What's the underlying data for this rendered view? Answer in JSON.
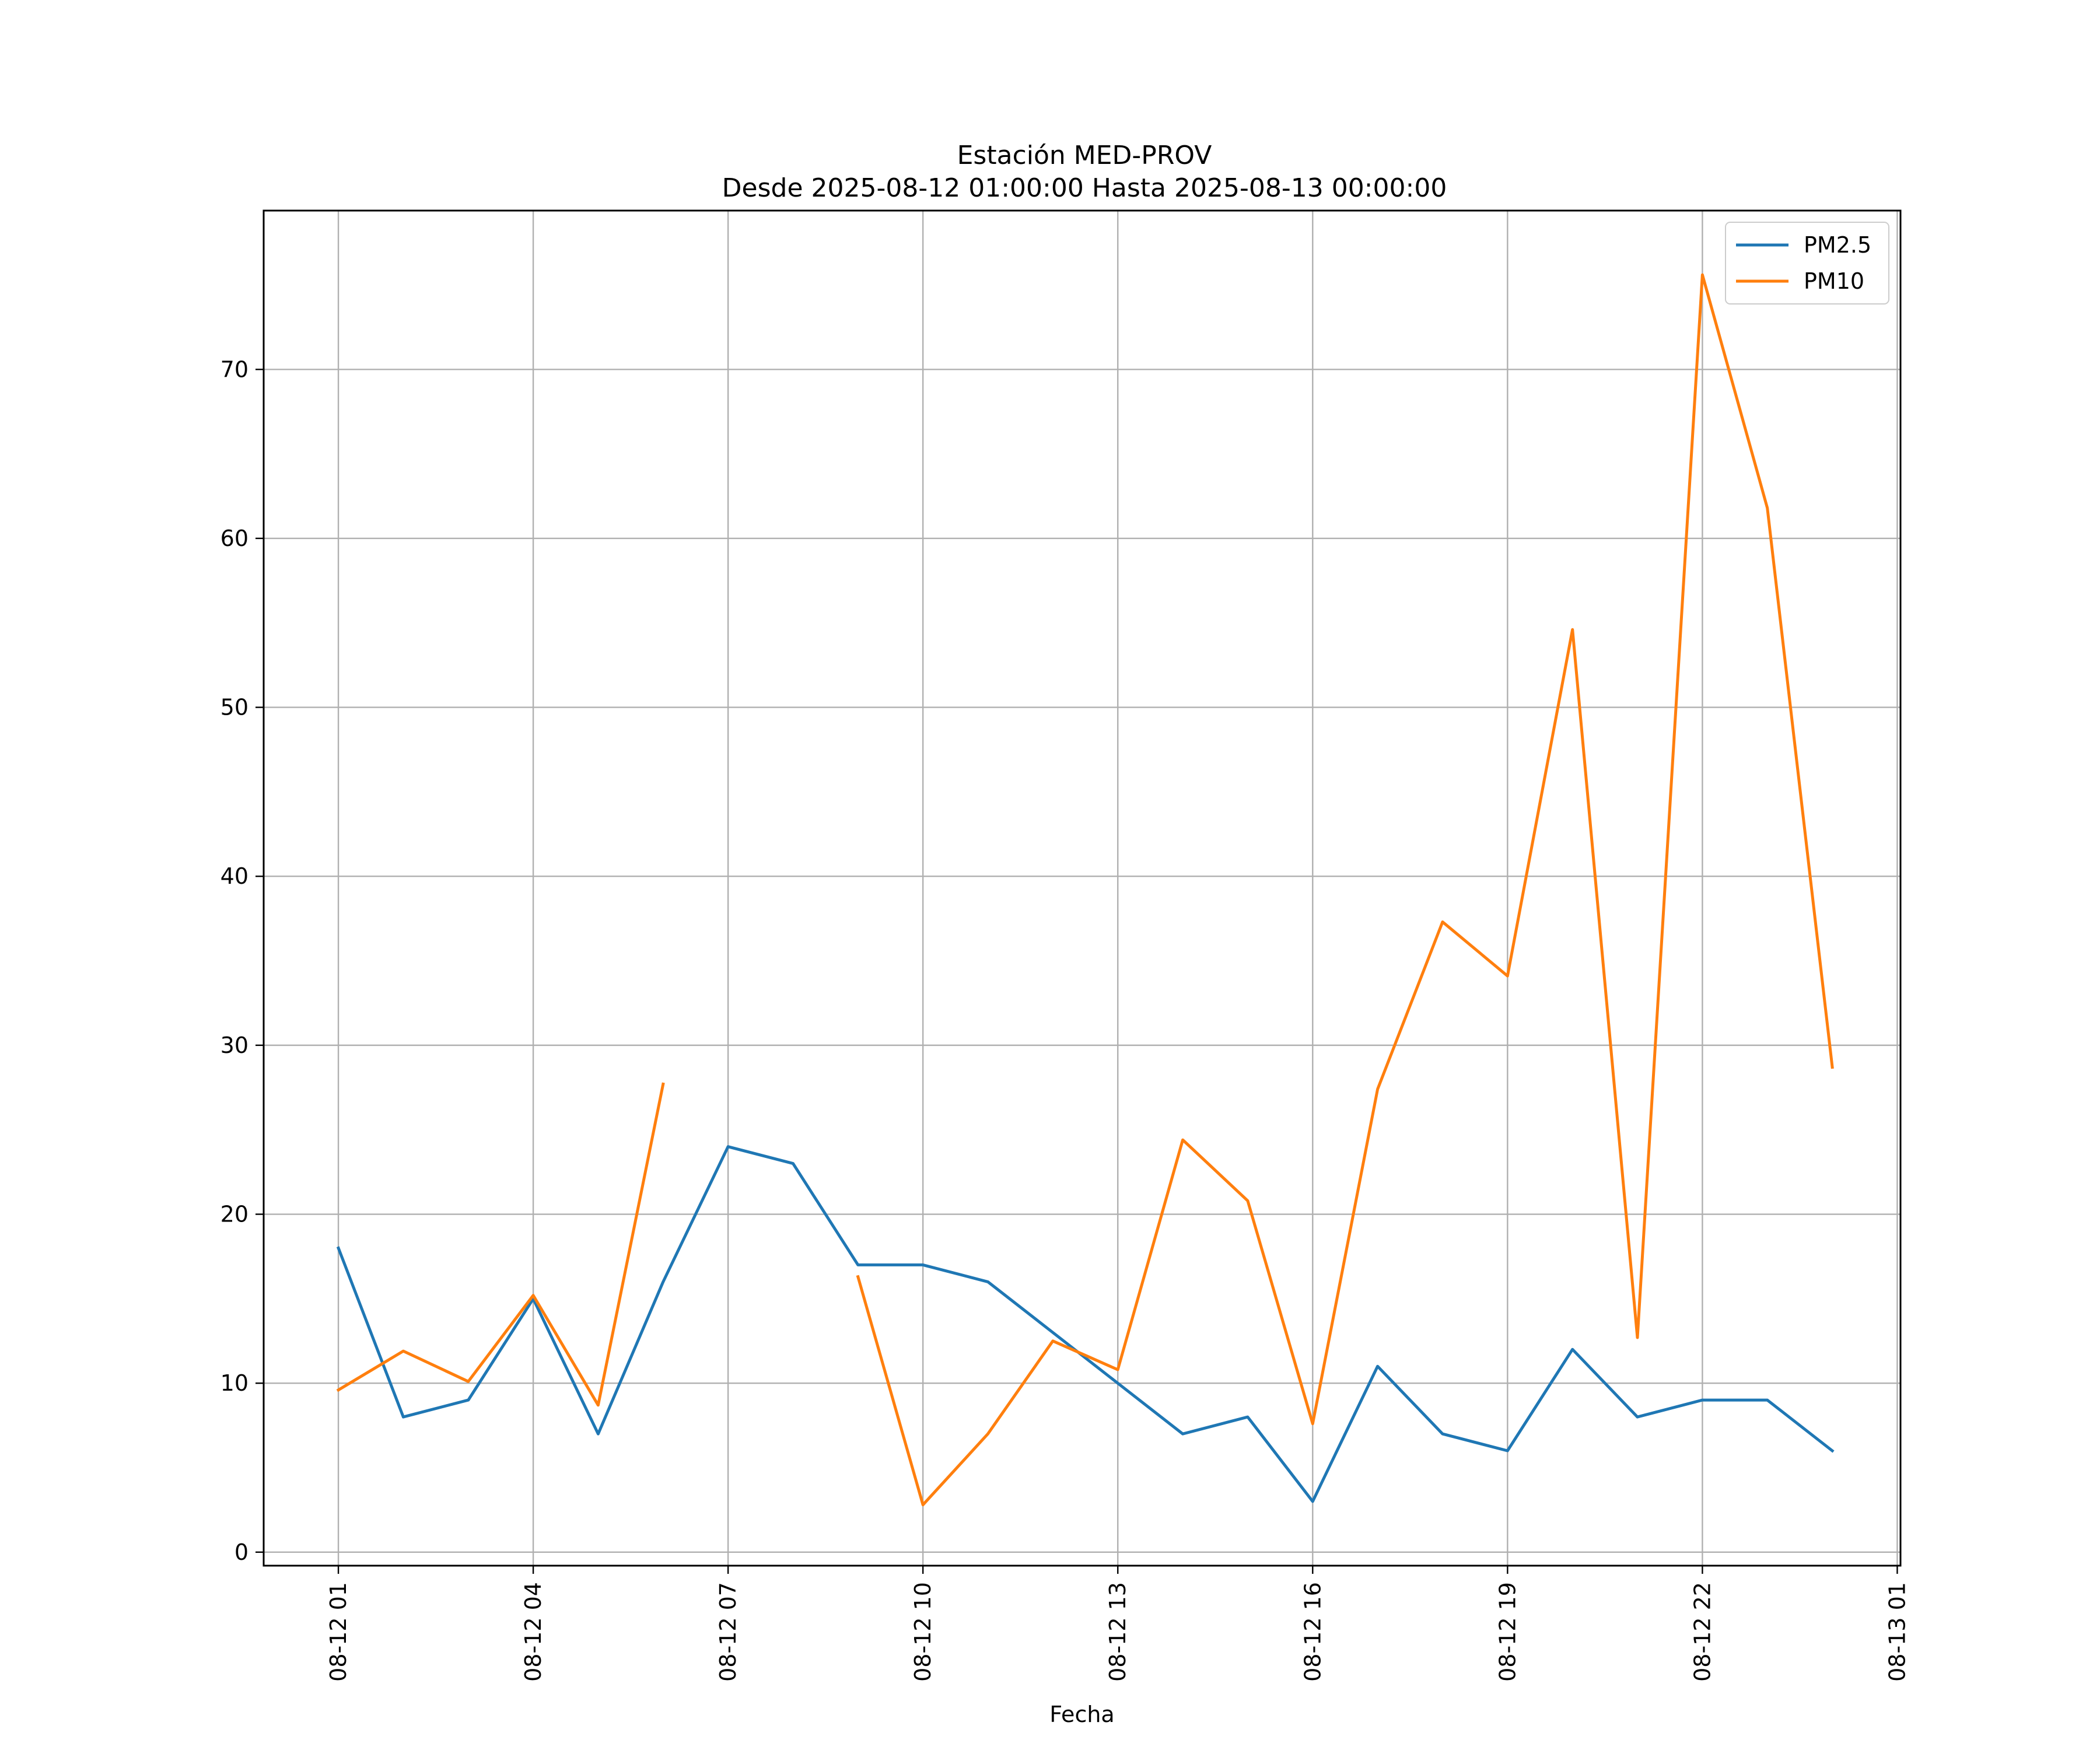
{
  "chart_data": {
    "type": "line",
    "title": "Estación MED-PROV",
    "subtitle": "Desde 2025-08-12 01:00:00 Hasta 2025-08-13 00:00:00",
    "xlabel": "Fecha",
    "ylabel": "",
    "x_hours": [
      1,
      2,
      3,
      4,
      5,
      6,
      7,
      8,
      9,
      10,
      11,
      12,
      13,
      14,
      15,
      16,
      17,
      18,
      19,
      20,
      21,
      22,
      23,
      24
    ],
    "xlim_hours": [
      -0.15,
      25.05
    ],
    "xticks": [
      {
        "hour": 1,
        "label": "08-12 01"
      },
      {
        "hour": 4,
        "label": "08-12 04"
      },
      {
        "hour": 7,
        "label": "08-12 07"
      },
      {
        "hour": 10,
        "label": "08-12 10"
      },
      {
        "hour": 13,
        "label": "08-12 13"
      },
      {
        "hour": 16,
        "label": "08-12 16"
      },
      {
        "hour": 19,
        "label": "08-12 19"
      },
      {
        "hour": 22,
        "label": "08-12 22"
      },
      {
        "hour": 25,
        "label": "08-13 01"
      }
    ],
    "ylim": [
      -0.8,
      79.4
    ],
    "yticks": [
      0,
      10,
      20,
      30,
      40,
      50,
      60,
      70
    ],
    "grid": true,
    "legend_position": "top-right",
    "series": [
      {
        "name": "PM2.5",
        "color": "#1f77b4",
        "values": [
          18,
          8,
          9,
          15,
          7,
          16,
          24,
          23,
          17,
          17,
          16,
          13,
          10,
          7,
          8,
          3,
          11,
          7,
          6,
          12,
          8,
          9,
          9,
          6
        ]
      },
      {
        "name": "PM10",
        "color": "#ff7f0e",
        "values": [
          9.6,
          11.9,
          10.1,
          15.2,
          8.7,
          27.7,
          null,
          null,
          16.3,
          2.8,
          7.0,
          12.5,
          10.8,
          24.4,
          20.8,
          7.6,
          27.4,
          37.3,
          34.1,
          54.6,
          12.7,
          75.6,
          61.8,
          28.7
        ]
      }
    ]
  }
}
